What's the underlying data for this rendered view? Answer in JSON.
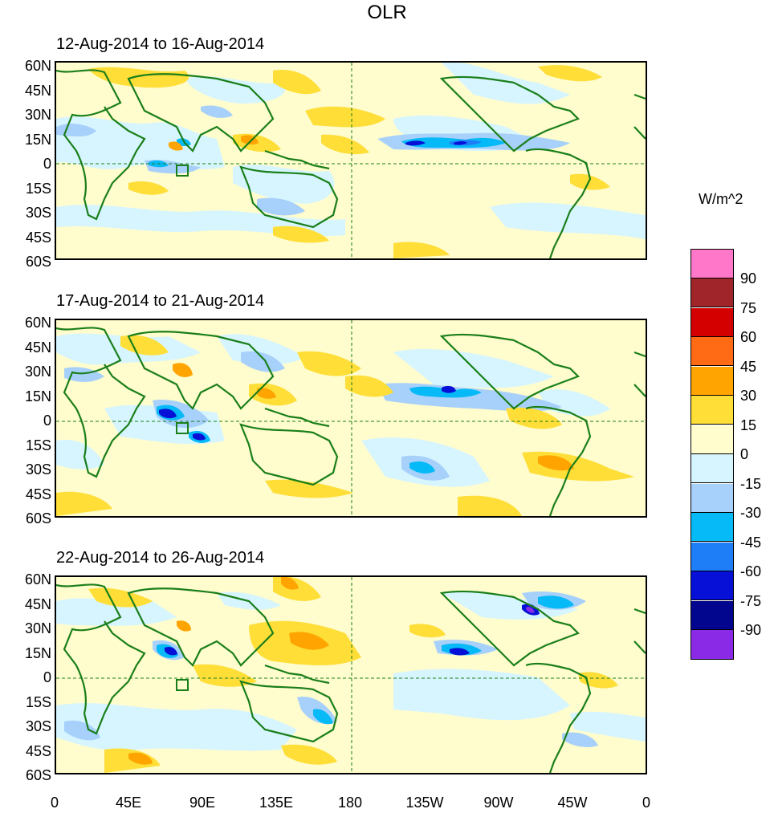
{
  "title": "OLR",
  "units": "W/m^2",
  "panels": [
    {
      "title": "12-Aug-2014 to 16-Aug-2014"
    },
    {
      "title": "17-Aug-2014 to 21-Aug-2014"
    },
    {
      "title": "22-Aug-2014 to 26-Aug-2014"
    }
  ],
  "lat_labels": [
    "60N",
    "45N",
    "30N",
    "15N",
    "0",
    "15S",
    "30S",
    "45S",
    "60S"
  ],
  "lon_labels": [
    "0",
    "45E",
    "90E",
    "135E",
    "180",
    "135W",
    "90W",
    "45W",
    "0"
  ],
  "colorbar": {
    "colors": [
      "#ff77c8",
      "#a0252a",
      "#d40000",
      "#ff6a14",
      "#ffa400",
      "#ffde38",
      "#fffccd",
      "#d7f5ff",
      "#a7d1fb",
      "#06b9f7",
      "#1e7ef8",
      "#0610d6",
      "#02058e",
      "#8b2ae6"
    ],
    "labels": [
      "90",
      "75",
      "60",
      "45",
      "30",
      "15",
      "0",
      "-15",
      "-30",
      "-45",
      "-60",
      "-75",
      "-90"
    ]
  },
  "colors": {
    "coast": "#1a7f1a",
    "ref_line": "#1a7f1a",
    "background": "#fffccd"
  }
}
